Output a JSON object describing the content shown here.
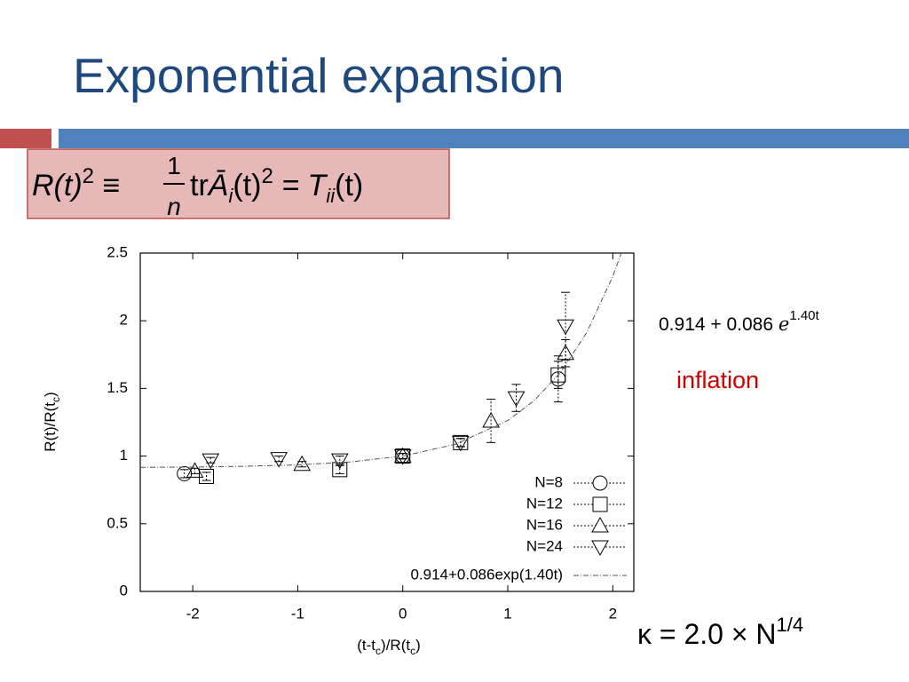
{
  "title": "Exponential expansion",
  "formula": {
    "lhs": "R(t)",
    "p1": "2",
    "equiv": " ≡ ",
    "num": "1",
    "den": "n",
    "tr": "tr",
    "a": "Ā",
    "i": "i",
    "arg": "(t)",
    "p2": "2",
    "eq": " = T",
    "ii": "ii",
    "end": "(t)"
  },
  "fit_note": {
    "text": "0.914 + 0.086 ",
    "e": "e",
    "power": "1.40t"
  },
  "inflation": "inflation",
  "kappa": {
    "text": "κ = 2.0 × N",
    "power": "1/4"
  },
  "chart_data": {
    "type": "scatter",
    "x_label_parts": [
      "(t-t",
      "c",
      ")/R(t",
      "c",
      ")"
    ],
    "y_label_parts": [
      "R(t)/R(t",
      "c",
      ")"
    ],
    "xlim": [
      -2.5,
      2.2
    ],
    "ylim": [
      0,
      2.5
    ],
    "xticks": [
      -2,
      -1,
      0,
      1,
      2
    ],
    "yticks": [
      0,
      0.5,
      1,
      1.5,
      2,
      2.5
    ],
    "legend": "lower right",
    "series": [
      {
        "name": "N=8",
        "mark": "circle",
        "color": "#000000",
        "x": [
          -2.08,
          0,
          1.48
        ],
        "values": [
          0.87,
          1.0,
          1.57
        ],
        "errors": [
          0.03,
          0.02,
          0.17
        ]
      },
      {
        "name": "N=12",
        "mark": "square",
        "color": "#000000",
        "x": [
          -1.87,
          -0.6,
          0,
          0.55,
          1.48
        ],
        "values": [
          0.85,
          0.9,
          1.0,
          1.1,
          1.6
        ],
        "errors": [
          0.03,
          0.03,
          0.02,
          0.03,
          0.1
        ]
      },
      {
        "name": "N=16",
        "mark": "triangle",
        "color": "#000000",
        "x": [
          -1.98,
          -0.96,
          0,
          0.84,
          1.55
        ],
        "values": [
          0.89,
          0.94,
          1.0,
          1.26,
          1.76
        ],
        "errors": [
          0.02,
          0.02,
          0.02,
          0.16,
          0.1
        ]
      },
      {
        "name": "N=24",
        "mark": "triangle-down",
        "color": "#000000",
        "x": [
          -1.83,
          -1.18,
          -0.6,
          0,
          0.55,
          1.08,
          1.55
        ],
        "values": [
          0.97,
          0.98,
          0.97,
          1.0,
          1.1,
          1.43,
          1.96
        ],
        "errors": [
          0.02,
          0.02,
          0.03,
          0.02,
          0.03,
          0.1,
          0.25
        ]
      },
      {
        "name": "0.914+0.086exp(1.40t)",
        "mark": "line",
        "color": "#555555",
        "x": [
          -2.5,
          -2,
          -1.5,
          -1,
          -0.5,
          0,
          0.5,
          1,
          1.25,
          1.5,
          1.75,
          2,
          2.1
        ],
        "values": [
          0.917,
          0.919,
          0.925,
          0.935,
          0.957,
          1.0,
          1.087,
          1.263,
          1.409,
          1.616,
          1.911,
          2.328,
          2.541
        ]
      }
    ]
  }
}
